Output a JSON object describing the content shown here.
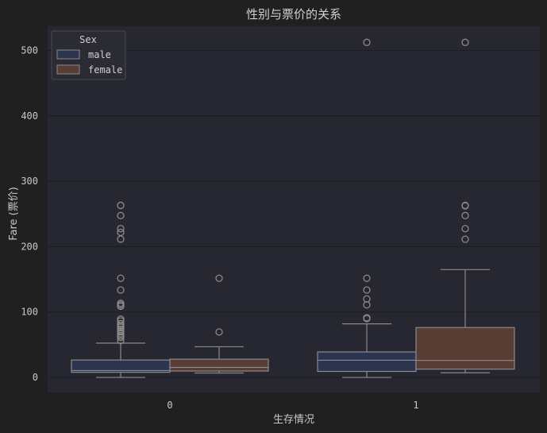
{
  "chart_data": {
    "type": "box",
    "title": "性别与票价的关系",
    "xlabel": "生存情况",
    "ylabel": "Fare (票价)",
    "categories": [
      "0",
      "1"
    ],
    "y_ticks": [
      "0",
      "100",
      "200",
      "300",
      "400",
      "500"
    ],
    "ylim": [
      -23,
      537
    ],
    "grid": true,
    "legend": {
      "title": "Sex",
      "placement": "top-left"
    },
    "colors": {
      "male": "#2b3550",
      "female": "#573d33",
      "background": "#262730",
      "figure": "#202020",
      "line": "#8a8a8a"
    },
    "series": [
      {
        "name": "male",
        "boxes": [
          {
            "category": "0",
            "whislo": 0,
            "q1": 7.9,
            "med": 10.5,
            "q3": 26.6,
            "whishi": 52.5,
            "fliers": [
              56.5,
              61.2,
              63.4,
              66.6,
              69.5,
              71.0,
              73.5,
              76.7,
              77.3,
              79.6,
              82.2,
              86.5,
              89.1,
              108.9,
              110.9,
              113.3,
              133.7,
              151.6,
              211.5,
              221.8,
              227.5,
              247.5,
              263.0
            ]
          },
          {
            "category": "1",
            "whislo": 0,
            "q1": 9.2,
            "med": 26.3,
            "q3": 39.0,
            "whishi": 81.9,
            "fliers": [
              90.0,
              91.1,
              110.9,
              120.0,
              133.7,
              151.6,
              512.3
            ]
          }
        ]
      },
      {
        "name": "female",
        "boxes": [
          {
            "category": "0",
            "whislo": 6.8,
            "q1": 9.8,
            "med": 15.3,
            "q3": 27.9,
            "whishi": 46.9,
            "fliers": [
              69.5,
              151.6
            ]
          },
          {
            "category": "1",
            "whislo": 7.2,
            "q1": 12.7,
            "med": 26.0,
            "q3": 76.3,
            "whishi": 164.9,
            "fliers": [
              211.3,
              227.5,
              247.5,
              262.4,
              263.0,
              512.3
            ]
          }
        ]
      }
    ]
  }
}
